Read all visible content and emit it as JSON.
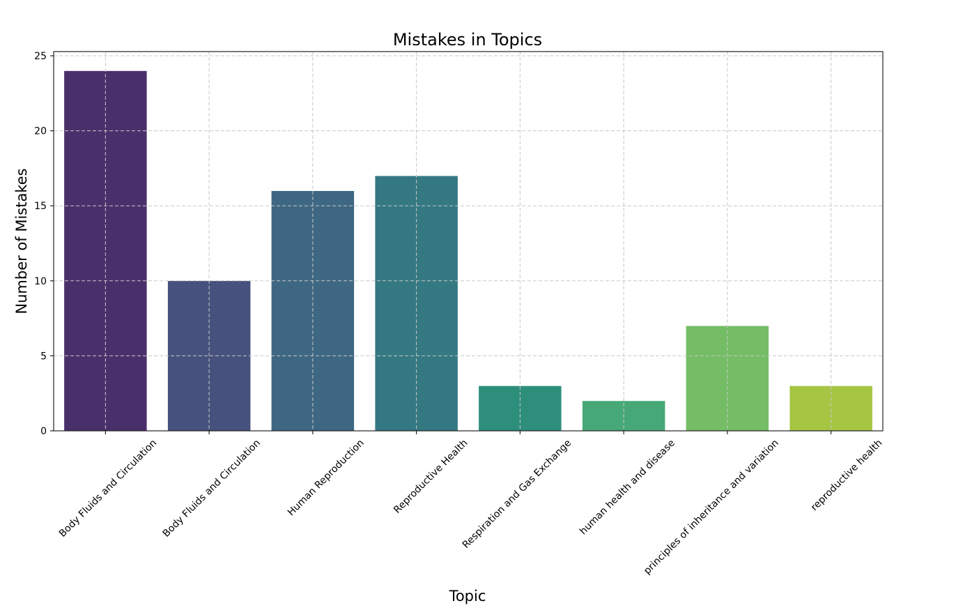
{
  "chart_data": {
    "type": "bar",
    "title": "Mistakes in Topics",
    "xlabel": "Topic",
    "ylabel": "Number of Mistakes",
    "categories": [
      "Body Fluids and Circulation",
      "Body Fluids and Circulation",
      "Human Reproduction",
      "Reproductive Health",
      "Respiration and Gas Exchange",
      "human health and disease",
      "principles of inheritance and variation",
      "reproductive health"
    ],
    "values": [
      24,
      10,
      16,
      17,
      3,
      2,
      7,
      3
    ],
    "colors": [
      "#4a306b",
      "#46517d",
      "#3e6783",
      "#347882",
      "#2d8f7b",
      "#46a877",
      "#74bd65",
      "#a6c543"
    ],
    "ylim": [
      0,
      25
    ],
    "yticks": [
      0,
      5,
      10,
      15,
      20,
      25
    ],
    "grid": true,
    "legend": "none"
  }
}
